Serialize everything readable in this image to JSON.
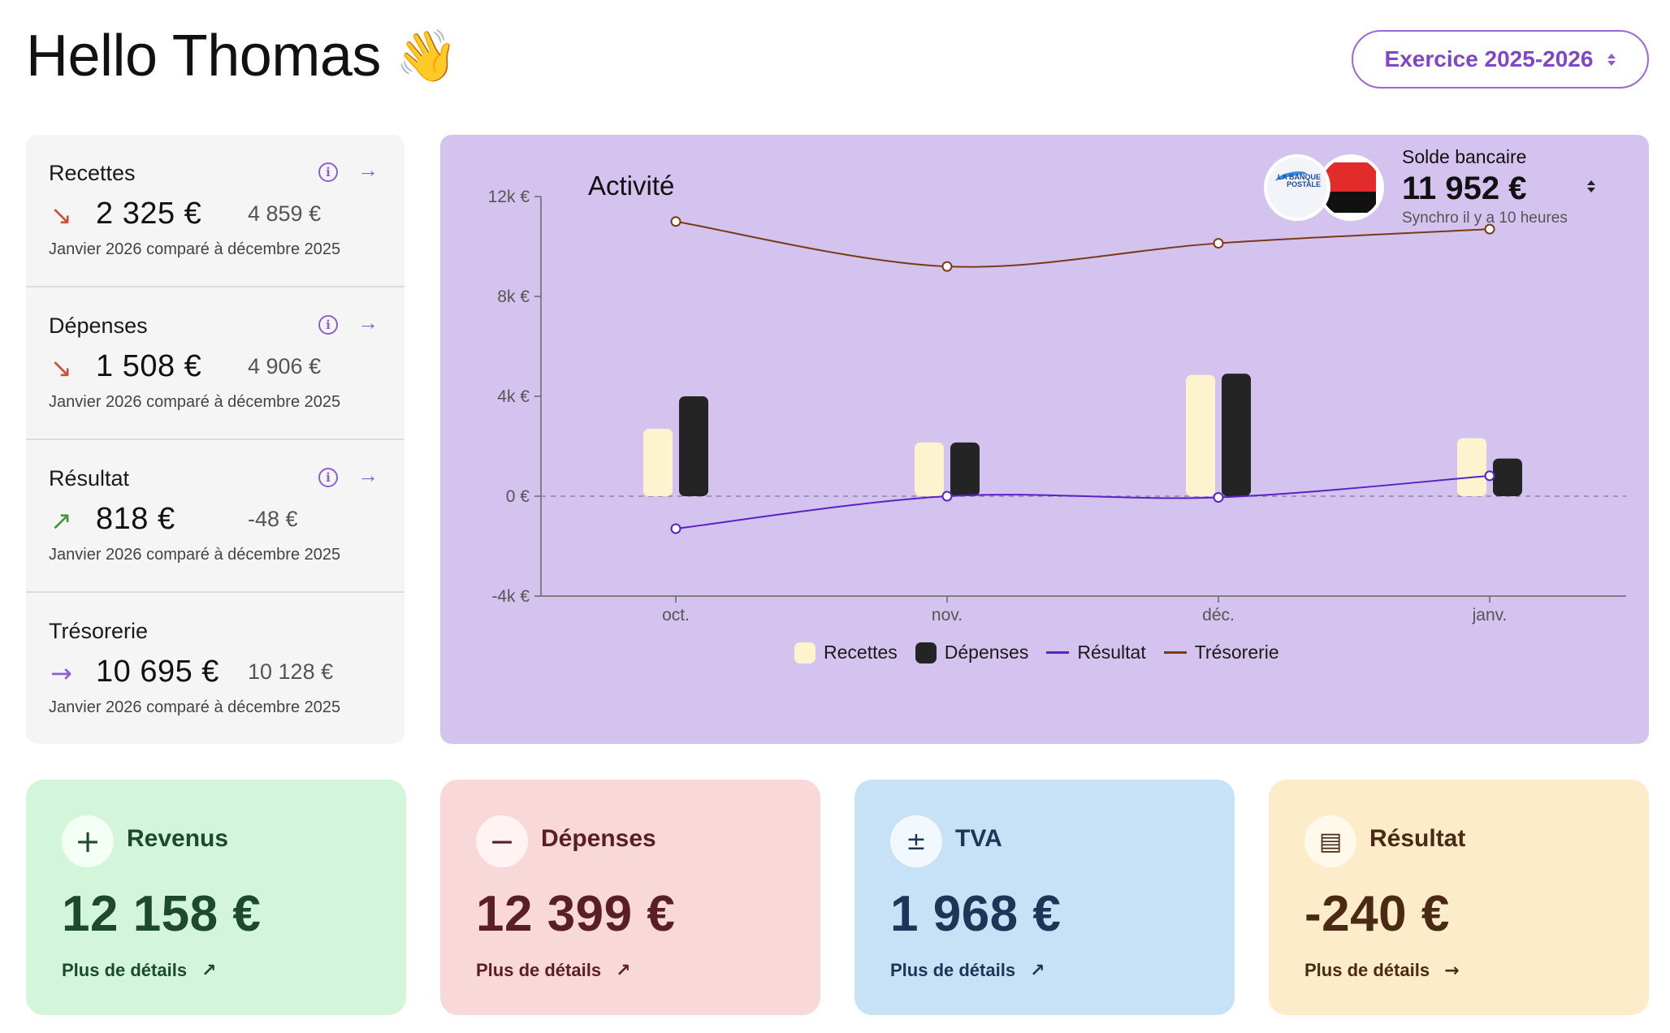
{
  "header": {
    "greeting": "Hello Thomas",
    "wave_emoji": "👋",
    "exercise_label": "Exercice 2025-2026"
  },
  "kpis": [
    {
      "label": "Recettes",
      "trend": "down",
      "trend_glyph": "↘",
      "value": "2 325 €",
      "previous": "4 859 €",
      "note": "Janvier 2026 comparé à décembre 2025",
      "has_info": true,
      "has_link": true
    },
    {
      "label": "Dépenses",
      "trend": "down",
      "trend_glyph": "↘",
      "value": "1 508 €",
      "previous": "4 906 €",
      "note": "Janvier 2026 comparé à décembre 2025",
      "has_info": true,
      "has_link": true
    },
    {
      "label": "Résultat",
      "trend": "up",
      "trend_glyph": "↗",
      "value": "818 €",
      "previous": "-48 €",
      "note": "Janvier 2026 comparé à décembre 2025",
      "has_info": true,
      "has_link": true
    },
    {
      "label": "Trésorerie",
      "trend": "flat",
      "trend_glyph": "→",
      "value": "10 695 €",
      "previous": "10 128 €",
      "note": "Janvier 2026 comparé à décembre 2025",
      "has_info": false,
      "has_link": false
    }
  ],
  "kpi_icons": {
    "info": "i",
    "link": "→"
  },
  "bank": {
    "label": "Solde bancaire",
    "amount": "11 952 €",
    "sync": "Synchro il y a 10 heures",
    "logo_text": "LA BANQUE POSTALE"
  },
  "colors": {
    "recettes": "#fdf4cf",
    "depenses": "#242424",
    "resultat": "#5a22c4",
    "tresorerie": "#7a3a16",
    "trend_down": "#c1553a",
    "trend_up": "#3f9a3a",
    "trend_flat": "#8c5fd0"
  },
  "chart_data": {
    "type": "bar",
    "title": "Activité",
    "categories": [
      "oct.",
      "nov.",
      "déc.",
      "janv."
    ],
    "ylim": [
      -4000,
      12000
    ],
    "yticks": [
      -4000,
      0,
      4000,
      8000,
      12000
    ],
    "ytick_labels": [
      "-4k €",
      "0 €",
      "4k €",
      "8k €",
      "12k €"
    ],
    "grid": false,
    "legend": "bottom",
    "series": [
      {
        "name": "Recettes",
        "kind": "bar",
        "values": [
          2700,
          2150,
          4859,
          2325
        ]
      },
      {
        "name": "Dépenses",
        "kind": "bar",
        "values": [
          4000,
          2150,
          4906,
          1508
        ]
      },
      {
        "name": "Résultat",
        "kind": "line",
        "values": [
          -1300,
          0,
          -48,
          818
        ]
      },
      {
        "name": "Trésorerie",
        "kind": "line",
        "values": [
          11000,
          9200,
          10128,
          10695
        ]
      }
    ]
  },
  "summary_cards": [
    {
      "key": "revenus",
      "icon": "plus-icon",
      "glyph": "+",
      "label": "Revenus",
      "value": "12 158 €",
      "link": "Plus de détails",
      "link_glyph": "↗",
      "bg": "#d3f5da",
      "fg": "#1d4a2c",
      "icon_bg": "#f4fff6"
    },
    {
      "key": "depenses",
      "icon": "minus-icon",
      "glyph": "−",
      "label": "Dépenses",
      "value": "12 399 €",
      "link": "Plus de détails",
      "link_glyph": "↗",
      "bg": "#f8d8d8",
      "fg": "#5a1f24",
      "icon_bg": "#fff3f3"
    },
    {
      "key": "tva",
      "icon": "calculator-icon",
      "glyph": "±",
      "label": "TVA",
      "value": "1 968 €",
      "link": "Plus de détails",
      "link_glyph": "↗",
      "bg": "#c7e2f7",
      "fg": "#1d3556",
      "icon_bg": "#f1f8fe"
    },
    {
      "key": "resultat",
      "icon": "receipt-icon",
      "glyph": "▤",
      "label": "Résultat",
      "value": "-240 €",
      "link": "Plus de détails",
      "link_glyph": "→",
      "bg": "#fcecc9",
      "fg": "#4a2a14",
      "icon_bg": "#fff9ec"
    }
  ]
}
